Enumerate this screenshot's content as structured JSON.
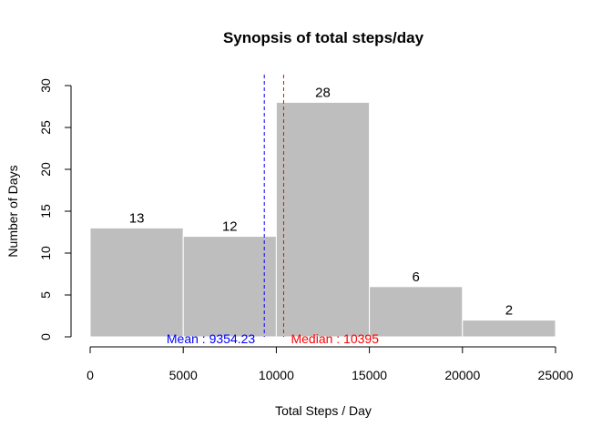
{
  "chart_data": {
    "type": "bar",
    "title": "Synopsis of total steps/day",
    "xlabel": "Total Steps / Day",
    "ylabel": "Number of Days",
    "bins": [
      {
        "start": 0,
        "end": 5000,
        "count": 13
      },
      {
        "start": 5000,
        "end": 10000,
        "count": 12
      },
      {
        "start": 10000,
        "end": 15000,
        "count": 28
      },
      {
        "start": 15000,
        "end": 20000,
        "count": 6
      },
      {
        "start": 20000,
        "end": 25000,
        "count": 2
      }
    ],
    "xlim": [
      0,
      25000
    ],
    "ylim": [
      0,
      30
    ],
    "x_ticks": [
      0,
      5000,
      10000,
      15000,
      20000,
      25000
    ],
    "y_ticks": [
      0,
      5,
      10,
      15,
      20,
      25,
      30
    ],
    "bar_color": "#bebebe",
    "grid": false,
    "reference_lines": [
      {
        "name": "mean",
        "value": 9354.23,
        "label": "Mean : 9354.23",
        "color": "#0000ff",
        "style": "dashed"
      },
      {
        "name": "median",
        "value": 10395,
        "label": "Median : 10395",
        "color": "#ff0000",
        "style": "dashed"
      }
    ]
  }
}
